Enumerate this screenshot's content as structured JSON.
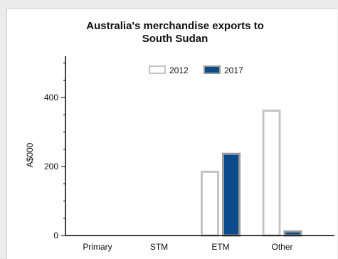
{
  "chart_data": {
    "type": "bar",
    "title_lines": [
      "Australia's merchandise exports to",
      "South Sudan"
    ],
    "ylabel": "A$000",
    "xlabel": "",
    "categories": [
      "Primary",
      "STM",
      "ETM",
      "Other"
    ],
    "series": [
      {
        "name": "2012",
        "values": [
          0,
          0,
          188,
          365
        ],
        "fill": "#ffffff",
        "stroke": "#c4c4c4"
      },
      {
        "name": "2017",
        "values": [
          0,
          0,
          240,
          15
        ],
        "fill": "#0b4a8b",
        "stroke": "#9a9a9a"
      }
    ],
    "ylim": [
      0,
      520
    ],
    "yticks": [
      0,
      200,
      400
    ],
    "ytick_labels": [
      "0",
      "200",
      "400"
    ],
    "legend_position": "top-center",
    "grid": false
  }
}
